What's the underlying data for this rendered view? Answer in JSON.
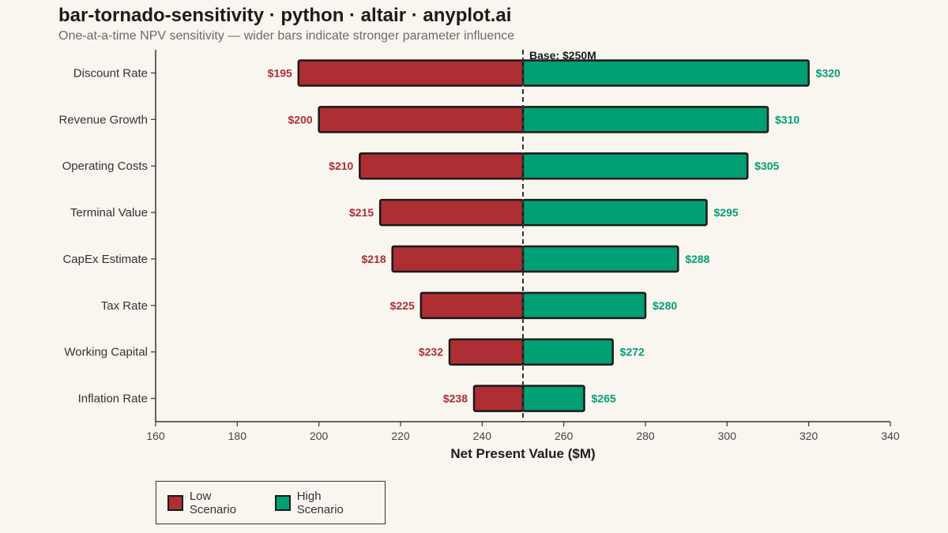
{
  "title": "bar-tornado-sensitivity · python · altair · anyplot.ai",
  "subtitle": "One-at-a-time NPV sensitivity — wider bars indicate stronger parameter influence",
  "legend": {
    "low_label": "Low Scenario",
    "high_label": "High Scenario"
  },
  "colors": {
    "low": "#ad2e33",
    "high": "#009e73",
    "background": "#f9f6f0"
  },
  "chart_data": {
    "type": "bar",
    "orientation": "horizontal",
    "xlabel": "Net Present Value ($M)",
    "xlim": [
      160,
      340
    ],
    "xticks": [
      160,
      180,
      200,
      220,
      240,
      260,
      280,
      300,
      320,
      340
    ],
    "base_value": 250,
    "base_label": "Base: $250M",
    "categories": [
      "Discount Rate",
      "Revenue Growth",
      "Operating Costs",
      "Terminal Value",
      "CapEx Estimate",
      "Tax Rate",
      "Working Capital",
      "Inflation Rate"
    ],
    "series": [
      {
        "name": "Low Scenario",
        "values": [
          195,
          200,
          210,
          215,
          218,
          225,
          232,
          238
        ],
        "labels": [
          "$195",
          "$200",
          "$210",
          "$215",
          "$218",
          "$225",
          "$232",
          "$238"
        ]
      },
      {
        "name": "High Scenario",
        "values": [
          320,
          310,
          305,
          295,
          288,
          280,
          272,
          265
        ],
        "labels": [
          "$320",
          "$310",
          "$305",
          "$295",
          "$288",
          "$280",
          "$272",
          "$265"
        ]
      }
    ],
    "grid": false,
    "legend_position": "bottom-left"
  }
}
